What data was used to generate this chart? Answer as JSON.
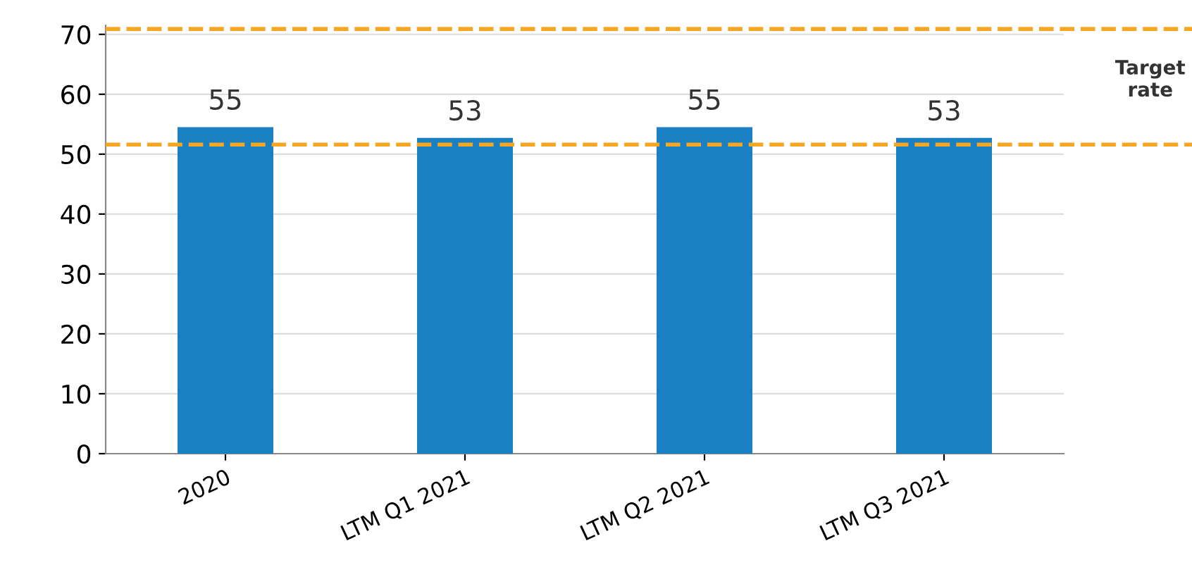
{
  "chart_data": {
    "type": "bar",
    "categories": [
      "2020",
      "LTM Q1 2021",
      "LTM Q2 2021",
      "LTM Q3 2021"
    ],
    "values": [
      54.5,
      52.7,
      54.5,
      52.7
    ],
    "value_labels": [
      "55",
      "53",
      "55",
      "53"
    ],
    "color": "#1a80c4",
    "ylim": [
      0,
      71.5
    ],
    "yticks": [
      0,
      10,
      20,
      30,
      40,
      50,
      60,
      70
    ],
    "grid": "y",
    "ref_lines": [
      {
        "axis": "y",
        "value": 51.6,
        "color": "#f5a623",
        "line_style": "dashed"
      },
      {
        "axis": "y",
        "value": 70.9,
        "color": "#f5a623",
        "line_style": "dashed"
      }
    ],
    "annotations": [
      "Target rate"
    ]
  }
}
